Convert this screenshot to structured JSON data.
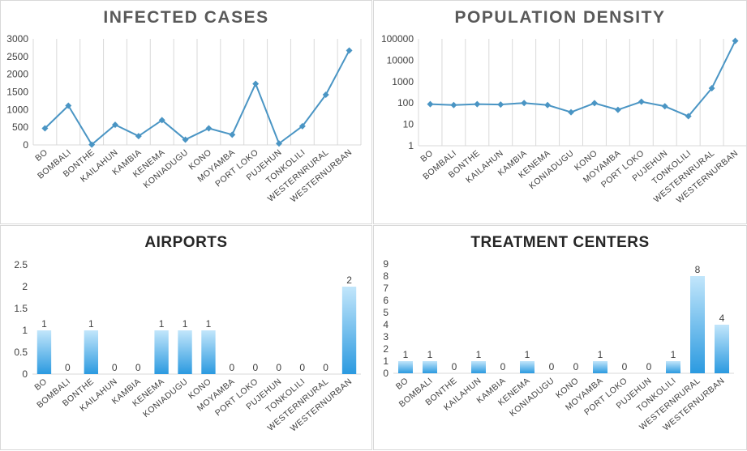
{
  "chart_data": [
    {
      "type": "line",
      "title": "INFECTED CASES",
      "categories": [
        "BO",
        "BOMBALI",
        "BONTHE",
        "KAILAHUN",
        "KAMBIA",
        "KENEMA",
        "KONIADUGU",
        "KONO",
        "MOYAMBA",
        "PORT LOKO",
        "PUJEHUN",
        "TONKOLILI",
        "WESTERNRURAL",
        "WESTERNURBAN"
      ],
      "values": [
        470,
        1110,
        10,
        570,
        250,
        700,
        150,
        470,
        290,
        1730,
        40,
        530,
        1420,
        2670
      ],
      "ylim": [
        0,
        3000
      ],
      "yticks": [
        "0",
        "500",
        "1000",
        "1500",
        "2000",
        "2500",
        "3000"
      ],
      "grid": "vertical",
      "color": "#4a95c4"
    },
    {
      "type": "line",
      "title": "POPULATION DENSITY",
      "yscale": "log",
      "categories": [
        "BO",
        "BOMBALI",
        "BONTHE",
        "KAILAHUN",
        "KAMBIA",
        "KENEMA",
        "KONIADUGU",
        "KONO",
        "MOYAMBA",
        "PORT LOKO",
        "PUJEHUN",
        "TONKOLILI",
        "WESTERNRURAL",
        "WESTERNURBAN"
      ],
      "values": [
        88,
        80,
        88,
        85,
        100,
        80,
        37,
        98,
        48,
        115,
        70,
        24,
        490,
        80000
      ],
      "ylim": [
        1,
        100000
      ],
      "yticks": [
        "1",
        "10",
        "100",
        "1000",
        "10000",
        "100000"
      ],
      "grid": "vertical",
      "color": "#4a95c4"
    },
    {
      "type": "bar",
      "title": "AIRPORTS",
      "categories": [
        "BO",
        "BOMBALI",
        "BONTHE",
        "KAILAHUN",
        "KAMBIA",
        "KENEMA",
        "KONIADUGU",
        "KONO",
        "MOYAMBA",
        "PORT LOKO",
        "PUJEHUN",
        "TONKOLILI",
        "WESTERNRURAL",
        "WESTERNURBAN"
      ],
      "values": [
        1,
        0,
        1,
        0,
        0,
        1,
        1,
        1,
        0,
        0,
        0,
        0,
        0,
        2
      ],
      "data_labels": [
        "1",
        "0",
        "1",
        "0",
        "0",
        "1",
        "1",
        "1",
        "0",
        "0",
        "0",
        "0",
        "0",
        "2"
      ],
      "ylim": [
        0,
        2.5
      ],
      "yticks": [
        "0",
        "0.5",
        "1",
        "1.5",
        "2",
        "2.5"
      ],
      "grid": "none",
      "color": "#5bb8ee"
    },
    {
      "type": "bar",
      "title": "TREATMENT CENTERS",
      "categories": [
        "BO",
        "BOMBALI",
        "BONTHE",
        "KAILAHUN",
        "KAMBIA",
        "KENEMA",
        "KONIADUGU",
        "KONO",
        "MOYAMBA",
        "PORT LOKO",
        "PUJEHUN",
        "TONKOLILI",
        "WESTERNRURAL",
        "WESTERNURBAN"
      ],
      "values": [
        1,
        1,
        0,
        1,
        0,
        1,
        0,
        0,
        1,
        0,
        0,
        1,
        8,
        4
      ],
      "data_labels": [
        "1",
        "1",
        "0",
        "1",
        "0",
        "1",
        "0",
        "0",
        "1",
        "0",
        "0",
        "1",
        "8",
        "4"
      ],
      "ylim": [
        0,
        9
      ],
      "yticks": [
        "0",
        "1",
        "2",
        "3",
        "4",
        "5",
        "6",
        "7",
        "8",
        "9"
      ],
      "grid": "none",
      "color": "#5bb8ee"
    }
  ]
}
